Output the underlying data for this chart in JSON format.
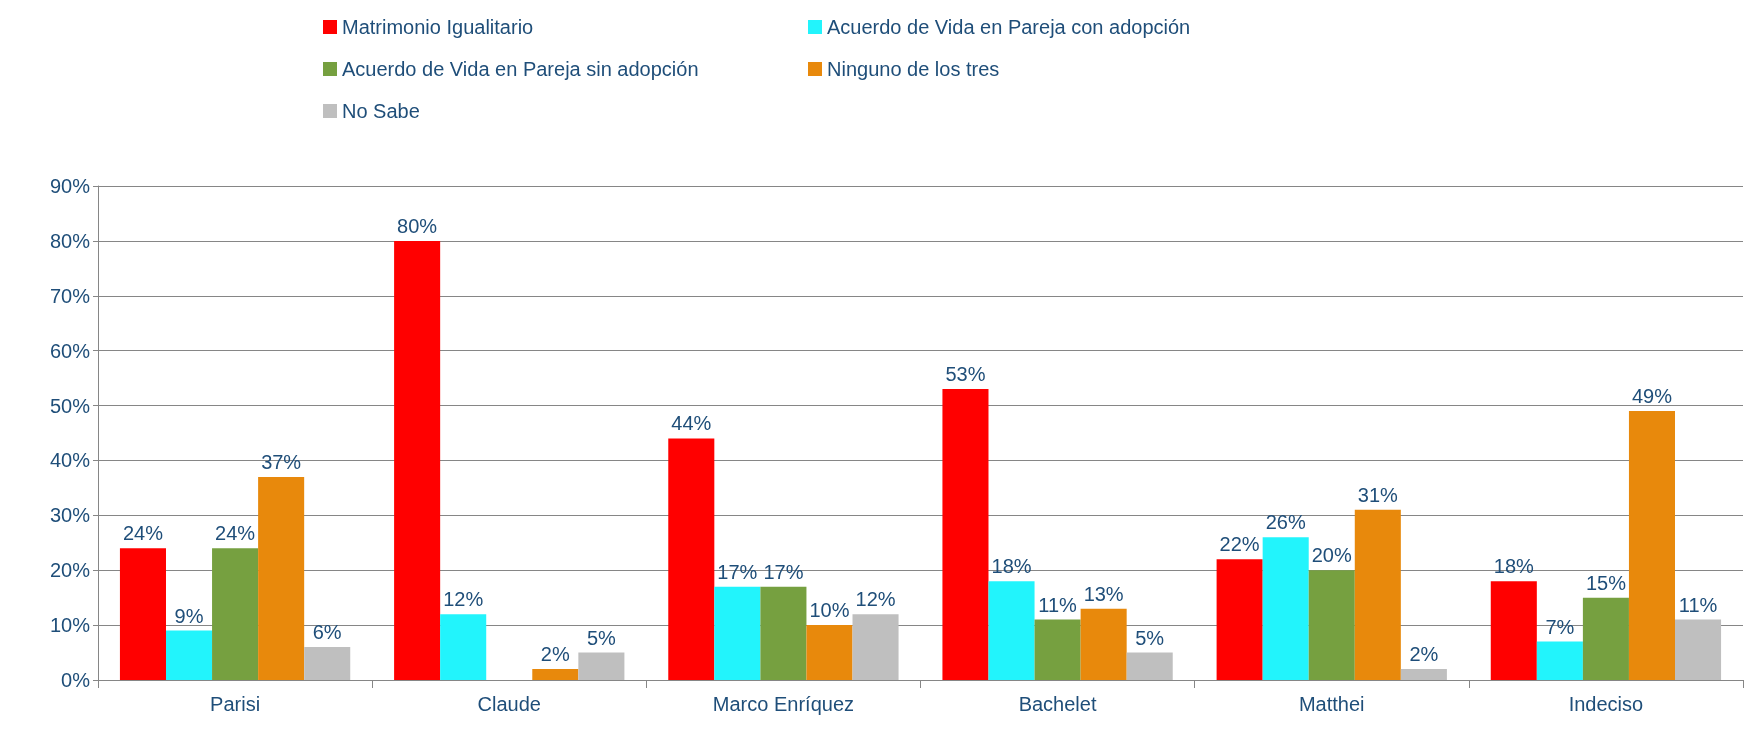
{
  "chart_data": {
    "type": "bar",
    "categories": [
      "Parisi",
      "Claude",
      "Marco Enríquez",
      "Bachelet",
      "Matthei",
      "Indeciso"
    ],
    "series": [
      {
        "name": "Matrimonio Igualitario",
        "color": "#ff0000",
        "values": [
          24,
          80,
          44,
          53,
          22,
          18
        ],
        "value_labels": [
          "24%",
          "80%",
          "44%",
          "53%",
          "22%",
          "18%"
        ]
      },
      {
        "name": "Acuerdo de Vida en Pareja con adopción",
        "color": "#22f4fc",
        "values": [
          9,
          12,
          17,
          18,
          26,
          7
        ],
        "value_labels": [
          "9%",
          "12%",
          "17%",
          "18%",
          "26%",
          "7%"
        ]
      },
      {
        "name": "Acuerdo de Vida en Pareja sin adopción",
        "color": "#76a040",
        "values": [
          24,
          null,
          17,
          11,
          20,
          15
        ],
        "value_labels": [
          "24%",
          null,
          "17%",
          "11%",
          "20%",
          "15%"
        ]
      },
      {
        "name": "Ninguno de los tres",
        "color": "#e8890c",
        "values": [
          37,
          2,
          10,
          13,
          31,
          49
        ],
        "value_labels": [
          "37%",
          "2%",
          "10%",
          "13%",
          "31%",
          "49%"
        ]
      },
      {
        "name": "No Sabe",
        "color": "#bfbfbf",
        "values": [
          6,
          5,
          12,
          5,
          2,
          11
        ],
        "value_labels": [
          "6%",
          "5%",
          "12%",
          "5%",
          "2%",
          "11%"
        ]
      }
    ],
    "ylim": [
      0,
      90
    ],
    "yticks": [
      {
        "value": 0,
        "label": "0%"
      },
      {
        "value": 10,
        "label": "10%"
      },
      {
        "value": 20,
        "label": "20%"
      },
      {
        "value": 30,
        "label": "30%"
      },
      {
        "value": 40,
        "label": "40%"
      },
      {
        "value": 50,
        "label": "50%"
      },
      {
        "value": 60,
        "label": "60%"
      },
      {
        "value": 70,
        "label": "70%"
      },
      {
        "value": 80,
        "label": "80%"
      },
      {
        "value": 90,
        "label": "90%"
      }
    ],
    "grid": "y",
    "legend": "top"
  }
}
